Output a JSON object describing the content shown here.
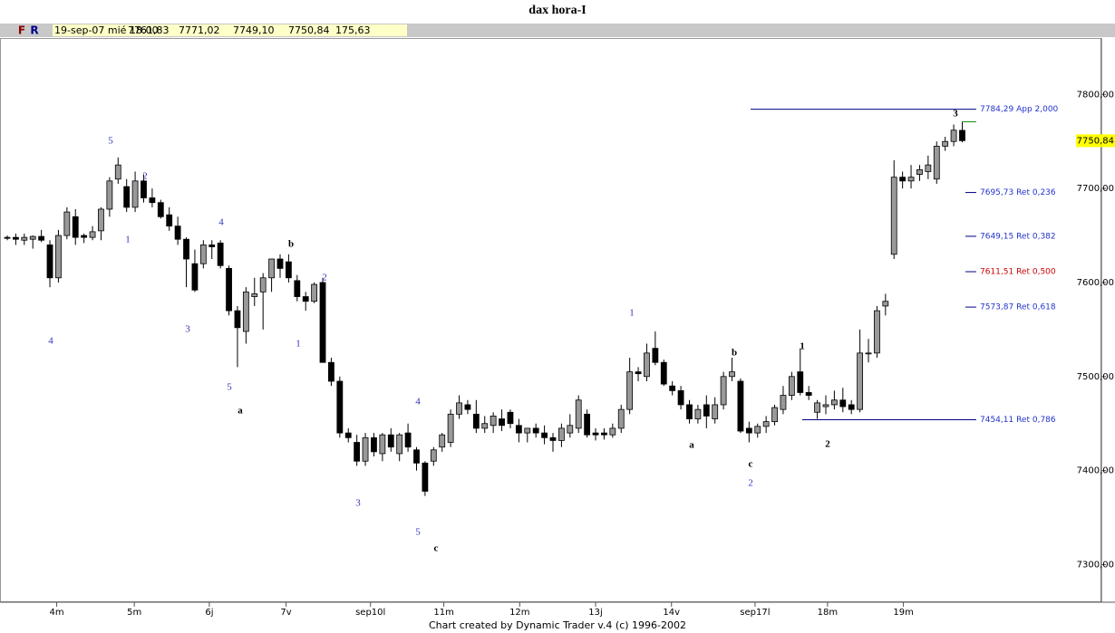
{
  "header": {
    "title": "dax hora-I",
    "buttons": [
      "F",
      "R"
    ],
    "quote": [
      "19-sep-07 mié 18:00",
      "7761,83",
      "7771,02",
      "7749,10",
      "7750,84",
      "175,63"
    ]
  },
  "chart_data": {
    "type": "candlestick",
    "open": [
      7648,
      7648,
      7645,
      7646,
      7649,
      7640,
      7605,
      7650,
      7670,
      7650,
      7648,
      7655,
      7678,
      7710,
      7702,
      7680,
      7708,
      7690,
      7685,
      7672,
      7660,
      7646,
      7620,
      7620,
      7640,
      7642,
      7615,
      7570,
      7548,
      7585,
      7590,
      7605,
      7625,
      7622,
      7602,
      7585,
      7580,
      7600,
      7515,
      7495,
      7440,
      7430,
      7410,
      7435,
      7418,
      7438,
      7418,
      7440,
      7422,
      7408,
      7410,
      7425,
      7430,
      7460,
      7470,
      7460,
      7445,
      7448,
      7455,
      7462,
      7448,
      7440,
      7445,
      7440,
      7435,
      7432,
      7440,
      7445,
      7460,
      7440,
      7440,
      7438,
      7445,
      7465,
      7505,
      7500,
      7530,
      7515,
      7490,
      7485,
      7470,
      7455,
      7470,
      7455,
      7470,
      7500,
      7495,
      7445,
      7440,
      7447,
      7452,
      7465,
      7480,
      7505,
      7483,
      7462,
      7468,
      7470,
      7475,
      7470,
      7465,
      7525,
      7525,
      7575,
      7630,
      7712,
      7708,
      7715,
      7718,
      7710,
      7745,
      7750,
      7761.83
    ],
    "high": [
      7650,
      7652,
      7652,
      7650,
      7656,
      7645,
      7656,
      7680,
      7678,
      7652,
      7660,
      7680,
      7712,
      7733,
      7710,
      7718,
      7715,
      7700,
      7688,
      7680,
      7670,
      7648,
      7635,
      7645,
      7645,
      7645,
      7618,
      7575,
      7595,
      7605,
      7610,
      7625,
      7630,
      7630,
      7608,
      7590,
      7600,
      7605,
      7520,
      7500,
      7445,
      7438,
      7440,
      7440,
      7440,
      7445,
      7440,
      7450,
      7425,
      7410,
      7425,
      7440,
      7465,
      7480,
      7475,
      7475,
      7458,
      7462,
      7465,
      7465,
      7455,
      7445,
      7450,
      7448,
      7440,
      7450,
      7460,
      7480,
      7465,
      7445,
      7445,
      7450,
      7470,
      7520,
      7510,
      7535,
      7548,
      7518,
      7495,
      7490,
      7475,
      7470,
      7480,
      7478,
      7505,
      7520,
      7498,
      7452,
      7450,
      7458,
      7470,
      7490,
      7505,
      7530,
      7490,
      7475,
      7480,
      7485,
      7488,
      7475,
      7550,
      7540,
      7575,
      7588,
      7730,
      7718,
      7725,
      7725,
      7735,
      7750,
      7755,
      7768,
      7771.02
    ],
    "low": [
      7645,
      7640,
      7640,
      7636,
      7643,
      7595,
      7600,
      7646,
      7640,
      7642,
      7645,
      7645,
      7670,
      7705,
      7675,
      7675,
      7685,
      7680,
      7668,
      7655,
      7640,
      7595,
      7590,
      7615,
      7625,
      7615,
      7565,
      7510,
      7535,
      7575,
      7550,
      7590,
      7605,
      7600,
      7580,
      7570,
      7578,
      7515,
      7490,
      7435,
      7430,
      7405,
      7405,
      7415,
      7410,
      7420,
      7410,
      7420,
      7400,
      7373,
      7405,
      7420,
      7425,
      7455,
      7460,
      7440,
      7440,
      7440,
      7442,
      7445,
      7430,
      7430,
      7435,
      7428,
      7420,
      7425,
      7435,
      7440,
      7435,
      7432,
      7433,
      7435,
      7440,
      7460,
      7495,
      7495,
      7512,
      7490,
      7480,
      7465,
      7450,
      7450,
      7445,
      7450,
      7465,
      7495,
      7440,
      7430,
      7435,
      7440,
      7448,
      7460,
      7475,
      7480,
      7475,
      7455,
      7460,
      7465,
      7462,
      7460,
      7462,
      7515,
      7520,
      7565,
      7625,
      7700,
      7700,
      7708,
      7710,
      7705,
      7740,
      7745,
      7749.1
    ],
    "close": [
      7647,
      7646,
      7648,
      7649,
      7645,
      7605,
      7650,
      7675,
      7648,
      7648,
      7654,
      7678,
      7708,
      7725,
      7680,
      7708,
      7690,
      7685,
      7670,
      7660,
      7646,
      7625,
      7592,
      7640,
      7638,
      7618,
      7570,
      7552,
      7590,
      7588,
      7605,
      7625,
      7615,
      7605,
      7585,
      7580,
      7598,
      7515,
      7495,
      7440,
      7435,
      7410,
      7435,
      7420,
      7438,
      7425,
      7438,
      7425,
      7408,
      7378,
      7422,
      7438,
      7460,
      7472,
      7465,
      7445,
      7450,
      7458,
      7448,
      7450,
      7440,
      7445,
      7440,
      7435,
      7432,
      7445,
      7448,
      7475,
      7438,
      7438,
      7438,
      7445,
      7465,
      7505,
      7503,
      7525,
      7515,
      7492,
      7485,
      7470,
      7455,
      7465,
      7458,
      7470,
      7500,
      7505,
      7442,
      7440,
      7447,
      7452,
      7467,
      7480,
      7500,
      7483,
      7480,
      7472,
      7470,
      7475,
      7468,
      7465,
      7525,
      7525,
      7570,
      7580,
      7712,
      7708,
      7712,
      7720,
      7725,
      7745,
      7750,
      7762,
      7750.84
    ],
    "up_color": "#999999",
    "down_color": "#000000",
    "ylim": [
      7260,
      7860
    ],
    "yticks": [
      {
        "value": 7300,
        "label": "7300,00"
      },
      {
        "value": 7400,
        "label": "7400,00"
      },
      {
        "value": 7500,
        "label": "7500,00"
      },
      {
        "value": 7600,
        "label": "7600,00"
      },
      {
        "value": 7700,
        "label": "7700,00"
      },
      {
        "value": 7800,
        "label": "7800,00"
      }
    ],
    "xlim": [
      -0.85,
      114.5
    ],
    "xticks": [
      {
        "value": 5.8,
        "label": "4m"
      },
      {
        "value": 14.9,
        "label": "5m"
      },
      {
        "value": 23.7,
        "label": "6j"
      },
      {
        "value": 32.7,
        "label": "7v"
      },
      {
        "value": 42.6,
        "label": "sep10l"
      },
      {
        "value": 51.2,
        "label": "11m"
      },
      {
        "value": 60.1,
        "label": "12m"
      },
      {
        "value": 69.0,
        "label": "13j"
      },
      {
        "value": 77.9,
        "label": "14v"
      },
      {
        "value": 87.7,
        "label": "sep17l"
      },
      {
        "value": 96.2,
        "label": "18m"
      },
      {
        "value": 105.1,
        "label": "19m"
      }
    ],
    "last_price": {
      "value": 7750.84,
      "label": "7750,84"
    },
    "levels": [
      {
        "value": 7784.29,
        "label": "7784,29 App 2,000",
        "color": "#2233cc",
        "line": true
      },
      {
        "value": 7695.73,
        "label": "7695,73 Ret 0,236",
        "color": "#2233cc",
        "line": false
      },
      {
        "value": 7649.15,
        "label": "7649,15 Ret 0,382",
        "color": "#2233cc",
        "line": false
      },
      {
        "value": 7611.51,
        "label": "7611,51 Ret 0,500",
        "color": "#cc0000",
        "line": false
      },
      {
        "value": 7573.87,
        "label": "7573,87 Ret 0,618",
        "color": "#2233cc",
        "line": false
      },
      {
        "value": 7454.11,
        "label": "7454,11 Ret 0,786",
        "color": "#2233cc",
        "line": true
      }
    ],
    "annotations": [
      {
        "text": "5",
        "color": "#3333bb"
      },
      {
        "text": "2",
        "color": "#3333bb"
      },
      {
        "text": "1",
        "color": "#3333bb"
      },
      {
        "text": "4",
        "color": "#3333bb"
      },
      {
        "text": "4",
        "color": "#3333bb"
      },
      {
        "text": "3",
        "color": "#3333bb"
      },
      {
        "text": "5",
        "color": "#3333bb"
      },
      {
        "text": "a",
        "color": "#000000"
      },
      {
        "text": "b",
        "color": "#000000"
      },
      {
        "text": "2",
        "color": "#3333bb"
      },
      {
        "text": "1",
        "color": "#3333bb"
      },
      {
        "text": "4",
        "color": "#3333bb"
      },
      {
        "text": "3",
        "color": "#3333bb"
      },
      {
        "text": "5",
        "color": "#3333bb"
      },
      {
        "text": "c",
        "color": "#000000"
      },
      {
        "text": "1",
        "color": "#3333bb"
      },
      {
        "text": "b",
        "color": "#000000"
      },
      {
        "text": "a",
        "color": "#000000"
      },
      {
        "text": "c",
        "color": "#000000"
      },
      {
        "text": "2",
        "color": "#3333bb"
      },
      {
        "text": "1",
        "color": "#000000"
      },
      {
        "text": "2",
        "color": "#000000"
      },
      {
        "text": "3",
        "color": "#000000"
      }
    ]
  },
  "footer": "Chart created by Dynamic Trader v.4  (c) 1996-2002"
}
